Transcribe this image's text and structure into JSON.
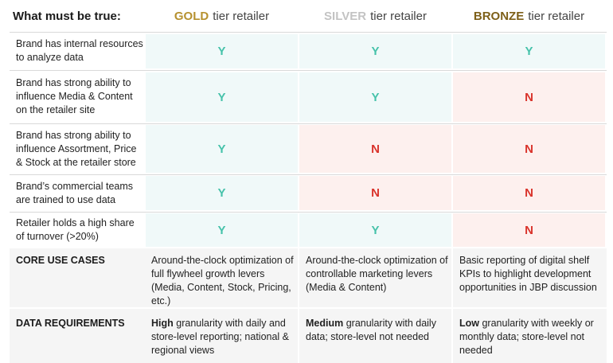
{
  "header": {
    "title": "What must be true:",
    "tiers": [
      {
        "name": "GOLD",
        "suffix": "tier retailer",
        "color": "#b6912f"
      },
      {
        "name": "SILVER",
        "suffix": "tier retailer",
        "color": "#c3c3c3"
      },
      {
        "name": "BRONZE",
        "suffix": "tier retailer",
        "color": "#7d5f18"
      }
    ]
  },
  "criteria": [
    {
      "label": "Brand has internal resources to analyze data",
      "values": [
        "Y",
        "Y",
        "Y"
      ]
    },
    {
      "label": "Brand has strong ability to influence Media & Content on the retailer site",
      "values": [
        "Y",
        "Y",
        "N"
      ]
    },
    {
      "label": "Brand has strong ability to influence Assortment, Price & Stock at the retailer store",
      "values": [
        "Y",
        "N",
        "N"
      ]
    },
    {
      "label": "Brand’s commercial teams are trained to use data",
      "values": [
        "Y",
        "N",
        "N"
      ]
    },
    {
      "label": "Retailer holds a high share of turnover (>20%)",
      "values": [
        "Y",
        "Y",
        "N"
      ]
    }
  ],
  "use_cases": {
    "label": "CORE USE CASES",
    "values": [
      "Around-the-clock optimization of full flywheel growth levers (Media, Content, Stock, Pricing, etc.)",
      "Around-the-clock optimization of controllable marketing levers (Media & Content)",
      "Basic reporting of digital shelf KPIs to highlight development opportunities in JBP discussion"
    ]
  },
  "data_requirements": {
    "label": "DATA REQUIREMENTS",
    "values": [
      {
        "emph": "High",
        "rest": " granularity with daily and store-level reporting; national & regional views"
      },
      {
        "emph": "Medium",
        "rest": " granularity with daily data; store-level not needed"
      },
      {
        "emph": "Low",
        "rest": " granularity with weekly or monthly data; store-level not needed"
      }
    ]
  },
  "colors": {
    "yes": "#46c2aa",
    "no": "#d9332b",
    "yes_bg": "#f0f9f9",
    "no_bg": "#fdf0ee"
  }
}
